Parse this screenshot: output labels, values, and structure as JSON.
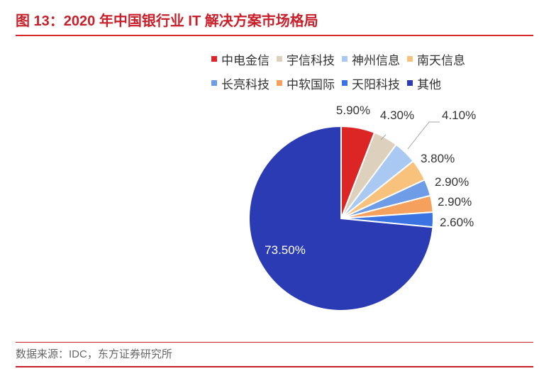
{
  "figure": {
    "title": "图 13：2020 年中国银行业 IT 解决方案市场格局",
    "source": "数据来源：IDC，东方证券研究所",
    "accent_color": "#c8202a"
  },
  "chart_data": {
    "type": "pie",
    "categories": [
      "中电金信",
      "宇信科技",
      "神州信息",
      "南天信息",
      "长亮科技",
      "中软国际",
      "天阳科技",
      "其他"
    ],
    "values": [
      5.9,
      4.3,
      4.1,
      3.8,
      2.9,
      2.9,
      2.6,
      73.5
    ],
    "labels": [
      "5.90%",
      "4.30%",
      "4.10%",
      "3.80%",
      "2.90%",
      "2.90%",
      "2.60%",
      "73.50%"
    ],
    "colors": [
      "#dc2626",
      "#ddd0bd",
      "#a9c8f2",
      "#f8c27c",
      "#6f9ce6",
      "#f5a05c",
      "#3b74e2",
      "#2a3bb3"
    ],
    "legend_position": "top",
    "legend_rows": [
      [
        0,
        1,
        2,
        3
      ],
      [
        4,
        5,
        6,
        7
      ]
    ]
  }
}
